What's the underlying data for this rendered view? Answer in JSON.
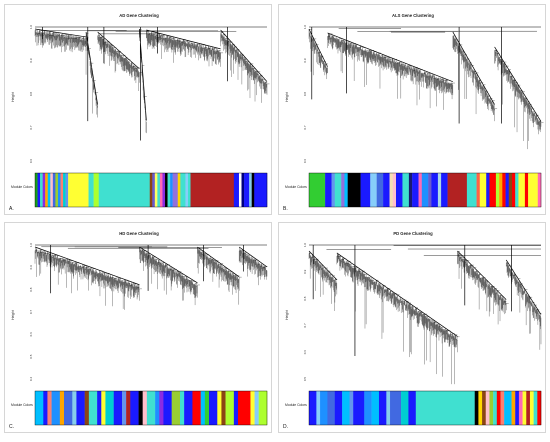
{
  "figure": {
    "module_row_label": "Module Colors",
    "y_axis_label": "Height",
    "panels": [
      {
        "letter": "A.",
        "title": "AD Gene Clustering",
        "y_ticks": [
          "1.0",
          "0.9",
          "0.8",
          "0.7",
          "0.6"
        ],
        "module_colors": [
          {
            "c": "#1aa01a",
            "w": 1
          },
          {
            "c": "#1a1aff",
            "w": 1
          },
          {
            "c": "#40e0d0",
            "w": 1
          },
          {
            "c": "#8a2be2",
            "w": 1
          },
          {
            "c": "#ffa500",
            "w": 1
          },
          {
            "c": "#00bfff",
            "w": 1
          },
          {
            "c": "#ffc0cb",
            "w": 1
          },
          {
            "c": "#4169e1",
            "w": 1
          },
          {
            "c": "#9acd32",
            "w": 1
          },
          {
            "c": "#1e90ff",
            "w": 1
          },
          {
            "c": "#fa8072",
            "w": 1
          },
          {
            "c": "#00ced1",
            "w": 1
          },
          {
            "c": "#6495ed",
            "w": 1
          },
          {
            "c": "#ffff33",
            "w": 8
          },
          {
            "c": "#40e0d0",
            "w": 2
          },
          {
            "c": "#adff2f",
            "w": 2
          },
          {
            "c": "#40e0d0",
            "w": 20
          },
          {
            "c": "#8b4513",
            "w": 1
          },
          {
            "c": "#6a5acd",
            "w": 1
          },
          {
            "c": "#ffff66",
            "w": 1
          },
          {
            "c": "#40e0d0",
            "w": 1
          },
          {
            "c": "#ff69b4",
            "w": 1
          },
          {
            "c": "#8a2be2",
            "w": 1
          },
          {
            "c": "#000000",
            "w": 1
          },
          {
            "c": "#40e0d0",
            "w": 1
          },
          {
            "c": "#1e90ff",
            "w": 1
          },
          {
            "c": "#9370db",
            "w": 2
          },
          {
            "c": "#ffd700",
            "w": 1
          },
          {
            "c": "#40e0d0",
            "w": 2
          },
          {
            "c": "#87cefa",
            "w": 1
          },
          {
            "c": "#40e0d0",
            "w": 1
          },
          {
            "c": "#b22222",
            "w": 17
          },
          {
            "c": "#1a1aff",
            "w": 2
          },
          {
            "c": "#ffffff",
            "w": 1
          },
          {
            "c": "#000080",
            "w": 1
          },
          {
            "c": "#1a1aff",
            "w": 2
          },
          {
            "c": "#87ceeb",
            "w": 1
          },
          {
            "c": "#000000",
            "w": 1
          },
          {
            "c": "#1a1aff",
            "w": 5
          }
        ]
      },
      {
        "letter": "B.",
        "title": "ALS Gene Clustering",
        "y_ticks": [
          "1.0",
          "0.9",
          "0.8",
          "0.7",
          "0.6"
        ],
        "module_colors": [
          {
            "c": "#32cd32",
            "w": 5
          },
          {
            "c": "#1a1aff",
            "w": 2
          },
          {
            "c": "#6495ed",
            "w": 1
          },
          {
            "c": "#40e0d0",
            "w": 2
          },
          {
            "c": "#9370db",
            "w": 1
          },
          {
            "c": "#00bfff",
            "w": 1
          },
          {
            "c": "#000000",
            "w": 4
          },
          {
            "c": "#1a1aff",
            "w": 3
          },
          {
            "c": "#87cefa",
            "w": 2
          },
          {
            "c": "#4169e1",
            "w": 2
          },
          {
            "c": "#1a1aff",
            "w": 2
          },
          {
            "c": "#f5deb3",
            "w": 1
          },
          {
            "c": "#ffc0cb",
            "w": 1
          },
          {
            "c": "#1a1aff",
            "w": 2
          },
          {
            "c": "#40e0d0",
            "w": 2
          },
          {
            "c": "#191970",
            "w": 1
          },
          {
            "c": "#1a1aff",
            "w": 2
          },
          {
            "c": "#ff69b4",
            "w": 1
          },
          {
            "c": "#1e90ff",
            "w": 2
          },
          {
            "c": "#6a5acd",
            "w": 1
          },
          {
            "c": "#1a1aff",
            "w": 2
          },
          {
            "c": "#add8e6",
            "w": 1
          },
          {
            "c": "#1a1aff",
            "w": 2
          },
          {
            "c": "#b22222",
            "w": 6
          },
          {
            "c": "#40e0d0",
            "w": 3
          },
          {
            "c": "#ff6347",
            "w": 1
          },
          {
            "c": "#ffff33",
            "w": 2
          },
          {
            "c": "#1a1aff",
            "w": 1
          },
          {
            "c": "#ff0000",
            "w": 2
          },
          {
            "c": "#adff2f",
            "w": 1
          },
          {
            "c": "#ffa500",
            "w": 1
          },
          {
            "c": "#ff0000",
            "w": 1
          },
          {
            "c": "#1a1aff",
            "w": 1
          },
          {
            "c": "#8b4513",
            "w": 1
          },
          {
            "c": "#ff0000",
            "w": 1
          },
          {
            "c": "#40e0d0",
            "w": 1
          },
          {
            "c": "#ffff33",
            "w": 2
          },
          {
            "c": "#ff0000",
            "w": 1
          },
          {
            "c": "#ffff33",
            "w": 3
          },
          {
            "c": "#ff69b4",
            "w": 1
          }
        ]
      },
      {
        "letter": "C.",
        "title": "HD Gene Clustering",
        "y_ticks": [
          "1.0",
          "0.9",
          "0.8",
          "0.7",
          "0.6",
          "0.5",
          "0.4"
        ],
        "module_colors": [
          {
            "c": "#00bfff",
            "w": 2
          },
          {
            "c": "#1a1aff",
            "w": 1
          },
          {
            "c": "#fa8072",
            "w": 1
          },
          {
            "c": "#1e90ff",
            "w": 2
          },
          {
            "c": "#ffa500",
            "w": 1
          },
          {
            "c": "#4169e1",
            "w": 2
          },
          {
            "c": "#87ceeb",
            "w": 1
          },
          {
            "c": "#1a1aff",
            "w": 2
          },
          {
            "c": "#8b4513",
            "w": 1
          },
          {
            "c": "#40e0d0",
            "w": 2
          },
          {
            "c": "#1a1aff",
            "w": 1
          },
          {
            "c": "#ffff33",
            "w": 1
          },
          {
            "c": "#00ced1",
            "w": 2
          },
          {
            "c": "#1a1aff",
            "w": 2
          },
          {
            "c": "#6495ed",
            "w": 1
          },
          {
            "c": "#b22222",
            "w": 1
          },
          {
            "c": "#1a1aff",
            "w": 2
          },
          {
            "c": "#000000",
            "w": 1
          },
          {
            "c": "#ffc0cb",
            "w": 1
          },
          {
            "c": "#40e0d0",
            "w": 2
          },
          {
            "c": "#1e90ff",
            "w": 1
          },
          {
            "c": "#8a2be2",
            "w": 1
          },
          {
            "c": "#1a1aff",
            "w": 2
          },
          {
            "c": "#9acd32",
            "w": 2
          },
          {
            "c": "#40e0d0",
            "w": 1
          },
          {
            "c": "#1a1aff",
            "w": 2
          },
          {
            "c": "#ff0000",
            "w": 2
          },
          {
            "c": "#00bfff",
            "w": 1
          },
          {
            "c": "#32cd32",
            "w": 1
          },
          {
            "c": "#1a1aff",
            "w": 2
          },
          {
            "c": "#ffff33",
            "w": 1
          },
          {
            "c": "#8b4513",
            "w": 1
          },
          {
            "c": "#adff2f",
            "w": 2
          },
          {
            "c": "#1a1aff",
            "w": 1
          },
          {
            "c": "#ff0000",
            "w": 3
          },
          {
            "c": "#ffff33",
            "w": 1
          },
          {
            "c": "#87cefa",
            "w": 1
          },
          {
            "c": "#adff2f",
            "w": 2
          }
        ]
      },
      {
        "letter": "D.",
        "title": "PD Gene Clustering",
        "y_ticks": [
          "1.0",
          "0.9",
          "0.8",
          "0.7",
          "0.6",
          "0.5"
        ],
        "module_colors": [
          {
            "c": "#1a1aff",
            "w": 2
          },
          {
            "c": "#87cefa",
            "w": 1
          },
          {
            "c": "#1e90ff",
            "w": 2
          },
          {
            "c": "#4169e1",
            "w": 2
          },
          {
            "c": "#1a1aff",
            "w": 2
          },
          {
            "c": "#00bfff",
            "w": 2
          },
          {
            "c": "#6495ed",
            "w": 1
          },
          {
            "c": "#1a1aff",
            "w": 3
          },
          {
            "c": "#1e90ff",
            "w": 2
          },
          {
            "c": "#00bfff",
            "w": 2
          },
          {
            "c": "#1a1aff",
            "w": 2
          },
          {
            "c": "#87ceeb",
            "w": 1
          },
          {
            "c": "#4169e1",
            "w": 3
          },
          {
            "c": "#00ced1",
            "w": 2
          },
          {
            "c": "#1a1aff",
            "w": 2
          },
          {
            "c": "#40e0d0",
            "w": 16
          },
          {
            "c": "#000000",
            "w": 1
          },
          {
            "c": "#ffd700",
            "w": 1
          },
          {
            "c": "#8b4513",
            "w": 1
          },
          {
            "c": "#ffc0cb",
            "w": 1
          },
          {
            "c": "#9acd32",
            "w": 1
          },
          {
            "c": "#40e0d0",
            "w": 1
          },
          {
            "c": "#ff0000",
            "w": 1
          },
          {
            "c": "#fa8072",
            "w": 1
          },
          {
            "c": "#00bfff",
            "w": 2
          },
          {
            "c": "#ffa500",
            "w": 1
          },
          {
            "c": "#1a1aff",
            "w": 1
          },
          {
            "c": "#ff69b4",
            "w": 1
          },
          {
            "c": "#ffff33",
            "w": 1
          },
          {
            "c": "#b22222",
            "w": 1
          },
          {
            "c": "#ffff33",
            "w": 1
          },
          {
            "c": "#40e0d0",
            "w": 1
          },
          {
            "c": "#ff0000",
            "w": 1
          }
        ]
      }
    ]
  }
}
